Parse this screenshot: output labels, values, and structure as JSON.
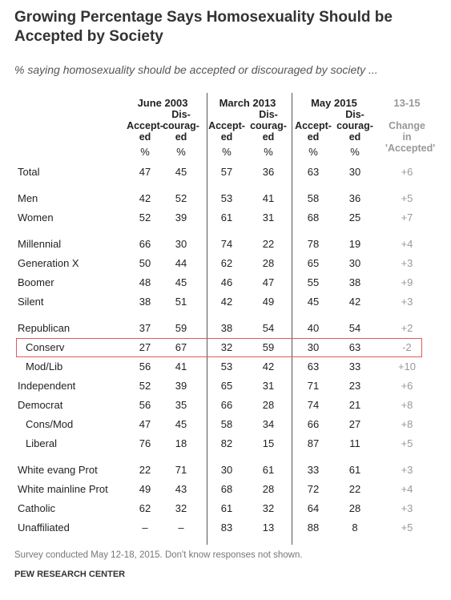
{
  "header": {
    "title": "Growing Percentage Says Homosexuality Should be Accepted by Society",
    "subtitle": "% saying homosexuality should be accepted or discouraged by society ..."
  },
  "table": {
    "group_headers": [
      "June 2003",
      "March 2013",
      "May 2015",
      "13-15"
    ],
    "column_headers": [
      "Accept-\ned",
      "Dis-\ncourag-\ned",
      "Accept-\ned",
      "Dis-\ncourag-\ned",
      "Accept-\ned",
      "Dis-\ncourag-\ned",
      "Change in\n'Accepted'"
    ],
    "units": [
      "%",
      "%",
      "%",
      "%",
      "%",
      "%"
    ],
    "groups": [
      [
        {
          "label": "Total",
          "values": [
            47,
            45,
            57,
            36,
            63,
            30,
            "+6"
          ]
        }
      ],
      [
        {
          "label": "Men",
          "values": [
            42,
            52,
            53,
            41,
            58,
            36,
            "+5"
          ]
        },
        {
          "label": "Women",
          "values": [
            52,
            39,
            61,
            31,
            68,
            25,
            "+7"
          ]
        }
      ],
      [
        {
          "label": "Millennial",
          "values": [
            66,
            30,
            74,
            22,
            78,
            19,
            "+4"
          ]
        },
        {
          "label": "Generation X",
          "values": [
            50,
            44,
            62,
            28,
            65,
            30,
            "+3"
          ]
        },
        {
          "label": "Boomer",
          "values": [
            48,
            45,
            46,
            47,
            55,
            38,
            "+9"
          ]
        },
        {
          "label": "Silent",
          "values": [
            38,
            51,
            42,
            49,
            45,
            42,
            "+3"
          ]
        }
      ],
      [
        {
          "label": "Republican",
          "values": [
            37,
            59,
            38,
            54,
            40,
            54,
            "+2"
          ]
        },
        {
          "label": "Conserv",
          "indent": true,
          "highlighted": true,
          "values": [
            27,
            67,
            32,
            59,
            30,
            63,
            "-2"
          ]
        },
        {
          "label": "Mod/Lib",
          "indent": true,
          "values": [
            56,
            41,
            53,
            42,
            63,
            33,
            "+10"
          ]
        },
        {
          "label": "Independent",
          "values": [
            52,
            39,
            65,
            31,
            71,
            23,
            "+6"
          ]
        },
        {
          "label": "Democrat",
          "values": [
            56,
            35,
            66,
            28,
            74,
            21,
            "+8"
          ]
        },
        {
          "label": "Cons/Mod",
          "indent": true,
          "values": [
            47,
            45,
            58,
            34,
            66,
            27,
            "+8"
          ]
        },
        {
          "label": "Liberal",
          "indent": true,
          "values": [
            76,
            18,
            82,
            15,
            87,
            11,
            "+5"
          ]
        }
      ],
      [
        {
          "label": "White evang Prot",
          "values": [
            22,
            71,
            30,
            61,
            33,
            61,
            "+3"
          ]
        },
        {
          "label": "White mainline Prot",
          "values": [
            49,
            43,
            68,
            28,
            72,
            22,
            "+4"
          ]
        },
        {
          "label": "Catholic",
          "values": [
            62,
            32,
            61,
            32,
            64,
            28,
            "+3"
          ]
        },
        {
          "label": "Unaffiliated",
          "values": [
            "–",
            "–",
            83,
            13,
            88,
            8,
            "+5"
          ]
        }
      ]
    ]
  },
  "footer": {
    "note": "Survey conducted May 12-18, 2015. Don't know responses not shown.",
    "source": "PEW RESEARCH CENTER"
  }
}
